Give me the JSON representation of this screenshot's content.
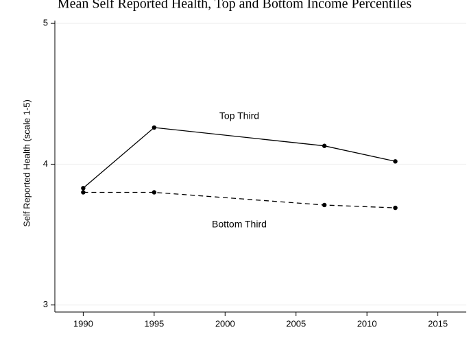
{
  "chart_data": {
    "type": "line",
    "title": "Mean Self Reported Health, Top and Bottom Income Percentiles",
    "xlabel": "",
    "ylabel": "Self Reported Health (scale 1-5)",
    "xlim": [
      1988,
      2017
    ],
    "ylim": [
      2.95,
      5.02
    ],
    "xticks": [
      1990,
      1995,
      2000,
      2005,
      2010,
      2015
    ],
    "yticks": [
      3,
      4,
      5
    ],
    "grid": true,
    "legend": "none",
    "series": [
      {
        "name": "Top Third",
        "style": "solid",
        "color": "#000000",
        "x": [
          1990,
          1995,
          2007,
          2012
        ],
        "y": [
          3.83,
          4.26,
          4.13,
          4.02
        ],
        "label_at": [
          2001,
          4.34
        ]
      },
      {
        "name": "Bottom Third",
        "style": "dashed",
        "color": "#000000",
        "x": [
          1990,
          1995,
          2007,
          2012
        ],
        "y": [
          3.8,
          3.8,
          3.71,
          3.69
        ],
        "label_at": [
          2001,
          3.57
        ]
      }
    ]
  }
}
